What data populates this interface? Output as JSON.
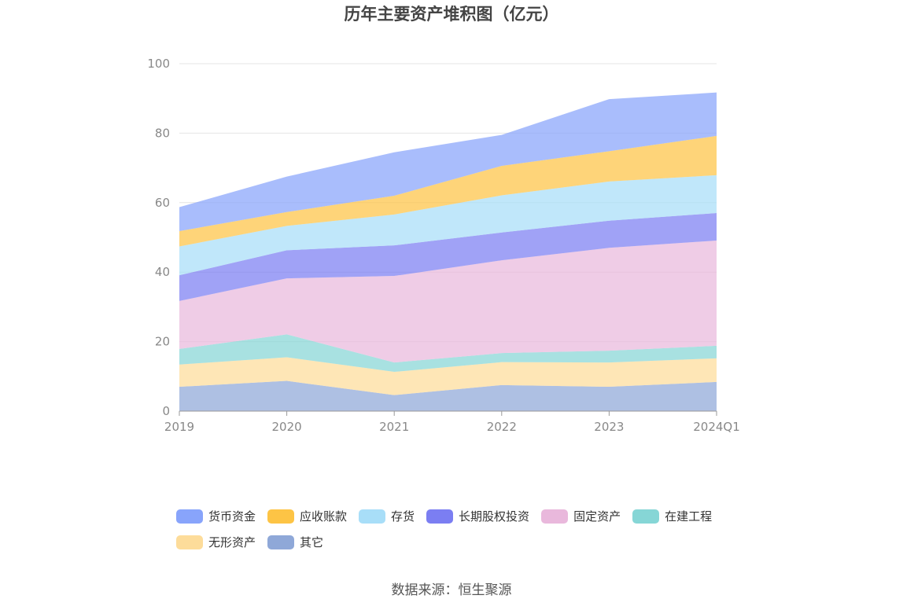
{
  "title": "历年主要资产堆积图（亿元）",
  "source": "数据来源：恒生聚源",
  "chart_data": {
    "type": "area",
    "stacked": true,
    "title": "历年主要资产堆积图（亿元）",
    "xlabel": "",
    "ylabel": "",
    "categories": [
      "2019",
      "2020",
      "2021",
      "2022",
      "2023",
      "2024Q1"
    ],
    "ylim": [
      0,
      100
    ],
    "yticks": [
      0,
      20,
      40,
      60,
      80,
      100
    ],
    "grid": true,
    "legend_position": "bottom",
    "series": [
      {
        "name": "其它",
        "color": "#8fa8d8",
        "values": [
          7.0,
          8.7,
          4.6,
          7.5,
          7.0,
          8.4
        ]
      },
      {
        "name": "无形资产",
        "color": "#fddc9a",
        "values": [
          6.4,
          6.8,
          6.7,
          6.6,
          7.0,
          6.8
        ]
      },
      {
        "name": "在建工程",
        "color": "#86d6d6",
        "values": [
          4.5,
          6.6,
          2.7,
          2.6,
          3.4,
          3.6
        ]
      },
      {
        "name": "固定资产",
        "color": "#e9b8dc",
        "values": [
          13.8,
          16.1,
          24.9,
          26.7,
          29.6,
          30.3
        ]
      },
      {
        "name": "长期股权投资",
        "color": "#7b7ef2",
        "values": [
          7.4,
          8.1,
          8.8,
          8.0,
          7.8,
          7.9
        ]
      },
      {
        "name": "存货",
        "color": "#a8def8",
        "values": [
          8.3,
          7.0,
          8.9,
          10.7,
          11.3,
          10.9
        ]
      },
      {
        "name": "应收账款",
        "color": "#fdc445",
        "values": [
          4.4,
          4.0,
          5.4,
          8.5,
          8.7,
          11.3
        ]
      },
      {
        "name": "货币资金",
        "color": "#88a4fb",
        "values": [
          6.9,
          10.2,
          12.5,
          8.9,
          15.0,
          12.5
        ]
      }
    ]
  },
  "legend": {
    "rows": [
      [
        {
          "label": "货币资金",
          "color": "#88a4fb"
        },
        {
          "label": "应收账款",
          "color": "#fdc445"
        },
        {
          "label": "存货",
          "color": "#a8def8"
        },
        {
          "label": "长期股权投资",
          "color": "#7b7ef2"
        },
        {
          "label": "固定资产",
          "color": "#e9b8dc"
        },
        {
          "label": "在建工程",
          "color": "#86d6d6"
        }
      ],
      [
        {
          "label": "无形资产",
          "color": "#fddc9a"
        },
        {
          "label": "其它",
          "color": "#8fa8d8"
        }
      ]
    ]
  }
}
